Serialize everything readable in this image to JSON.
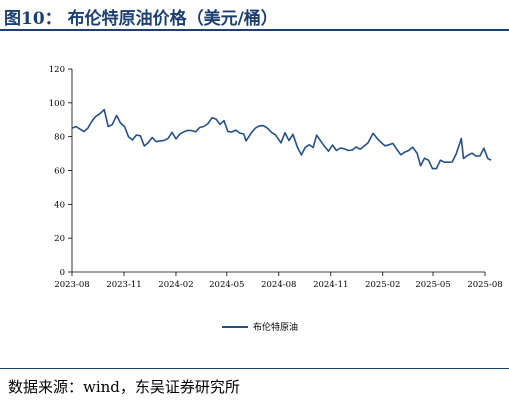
{
  "figure_title": "图10：  布伦特原油价格（美元/桶）",
  "source_note": "数据来源：wind，东吴证券研究所",
  "colors": {
    "title": "#1c3f73",
    "series": "#24508a",
    "axis": "#000000"
  },
  "chart_data": {
    "type": "line",
    "title": "",
    "xlabel": "",
    "ylabel": "",
    "ylim": [
      0,
      120
    ],
    "yticks": [
      0,
      20,
      40,
      60,
      80,
      100,
      120
    ],
    "xlim": [
      "2023-08",
      "2025-08"
    ],
    "xticks": [
      "2023-08",
      "2023-11",
      "2024-02",
      "2024-05",
      "2024-08",
      "2024-11",
      "2025-02",
      "2025-05",
      "2025-08"
    ],
    "grid": false,
    "legend_position": "bottom-center",
    "series": [
      {
        "name": "布伦特原油",
        "points": [
          [
            "2023-08-01",
            85
          ],
          [
            "2023-08-08",
            86
          ],
          [
            "2023-08-15",
            84.5
          ],
          [
            "2023-08-22",
            83
          ],
          [
            "2023-08-29",
            85
          ],
          [
            "2023-09-05",
            89
          ],
          [
            "2023-09-12",
            92
          ],
          [
            "2023-09-19",
            93.5
          ],
          [
            "2023-09-27",
            96
          ],
          [
            "2023-10-04",
            86
          ],
          [
            "2023-10-11",
            87
          ],
          [
            "2023-10-19",
            92.5
          ],
          [
            "2023-10-26",
            88
          ],
          [
            "2023-11-02",
            86
          ],
          [
            "2023-11-09",
            80
          ],
          [
            "2023-11-16",
            78
          ],
          [
            "2023-11-23",
            81
          ],
          [
            "2023-11-30",
            80.5
          ],
          [
            "2023-12-07",
            74.5
          ],
          [
            "2023-12-14",
            76.5
          ],
          [
            "2023-12-21",
            79.5
          ],
          [
            "2023-12-28",
            77
          ],
          [
            "2024-01-04",
            77.5
          ],
          [
            "2024-01-11",
            77.8
          ],
          [
            "2024-01-18",
            79
          ],
          [
            "2024-01-25",
            82.5
          ],
          [
            "2024-02-01",
            78.7
          ],
          [
            "2024-02-08",
            81.6
          ],
          [
            "2024-02-15",
            82.9
          ],
          [
            "2024-02-22",
            83.7
          ],
          [
            "2024-02-29",
            83.6
          ],
          [
            "2024-03-07",
            82.9
          ],
          [
            "2024-03-14",
            85.4
          ],
          [
            "2024-03-21",
            86
          ],
          [
            "2024-03-28",
            87.5
          ],
          [
            "2024-04-05",
            91.2
          ],
          [
            "2024-04-12",
            90.4
          ],
          [
            "2024-04-19",
            87.3
          ],
          [
            "2024-04-26",
            89.5
          ],
          [
            "2024-05-03",
            83
          ],
          [
            "2024-05-10",
            82.8
          ],
          [
            "2024-05-17",
            83.9
          ],
          [
            "2024-05-24",
            82.1
          ],
          [
            "2024-05-31",
            81.6
          ],
          [
            "2024-06-04",
            77.5
          ],
          [
            "2024-06-14",
            82.6
          ],
          [
            "2024-06-21",
            85.2
          ],
          [
            "2024-06-28",
            86.4
          ],
          [
            "2024-07-05",
            86.5
          ],
          [
            "2024-07-12",
            85
          ],
          [
            "2024-07-19",
            82.6
          ],
          [
            "2024-07-26",
            81.1
          ],
          [
            "2024-08-05",
            76.3
          ],
          [
            "2024-08-12",
            82.3
          ],
          [
            "2024-08-19",
            77.7
          ],
          [
            "2024-08-26",
            81.4
          ],
          [
            "2024-09-03",
            73.8
          ],
          [
            "2024-09-10",
            69.2
          ],
          [
            "2024-09-17",
            73.7
          ],
          [
            "2024-09-24",
            75.2
          ],
          [
            "2024-10-01",
            73.6
          ],
          [
            "2024-10-07",
            80.9
          ],
          [
            "2024-10-14",
            77.5
          ],
          [
            "2024-10-21",
            74.3
          ],
          [
            "2024-10-28",
            71.4
          ],
          [
            "2024-11-04",
            75.1
          ],
          [
            "2024-11-11",
            71.8
          ],
          [
            "2024-11-18",
            73.3
          ],
          [
            "2024-11-25",
            72.8
          ],
          [
            "2024-12-02",
            71.8
          ],
          [
            "2024-12-09",
            72.1
          ],
          [
            "2024-12-16",
            73.9
          ],
          [
            "2024-12-23",
            72.6
          ],
          [
            "2024-12-30",
            74.4
          ],
          [
            "2025-01-06",
            76.3
          ],
          [
            "2025-01-15",
            82
          ],
          [
            "2025-01-22",
            79
          ],
          [
            "2025-01-29",
            76.6
          ],
          [
            "2025-02-05",
            74.6
          ],
          [
            "2025-02-12",
            75.2
          ],
          [
            "2025-02-19",
            76
          ],
          [
            "2025-02-26",
            72.5
          ],
          [
            "2025-03-05",
            69.3
          ],
          [
            "2025-03-12",
            70.9
          ],
          [
            "2025-03-19",
            71.8
          ],
          [
            "2025-03-26",
            73.8
          ],
          [
            "2025-04-03",
            70.1
          ],
          [
            "2025-04-09",
            62.8
          ],
          [
            "2025-04-16",
            67.3
          ],
          [
            "2025-04-23",
            66.1
          ],
          [
            "2025-04-30",
            61.1
          ],
          [
            "2025-05-07",
            61.1
          ],
          [
            "2025-05-14",
            66.1
          ],
          [
            "2025-05-21",
            64.9
          ],
          [
            "2025-05-28",
            64.9
          ],
          [
            "2025-06-04",
            65
          ],
          [
            "2025-06-11",
            69.8
          ],
          [
            "2025-06-18",
            76.7
          ],
          [
            "2025-06-20",
            79
          ],
          [
            "2025-06-24",
            67.1
          ],
          [
            "2025-07-02",
            69.1
          ],
          [
            "2025-07-09",
            70.2
          ],
          [
            "2025-07-16",
            68.5
          ],
          [
            "2025-07-23",
            68.6
          ],
          [
            "2025-07-30",
            73.2
          ],
          [
            "2025-08-06",
            67.1
          ],
          [
            "2025-08-12",
            66.1
          ]
        ]
      }
    ]
  }
}
